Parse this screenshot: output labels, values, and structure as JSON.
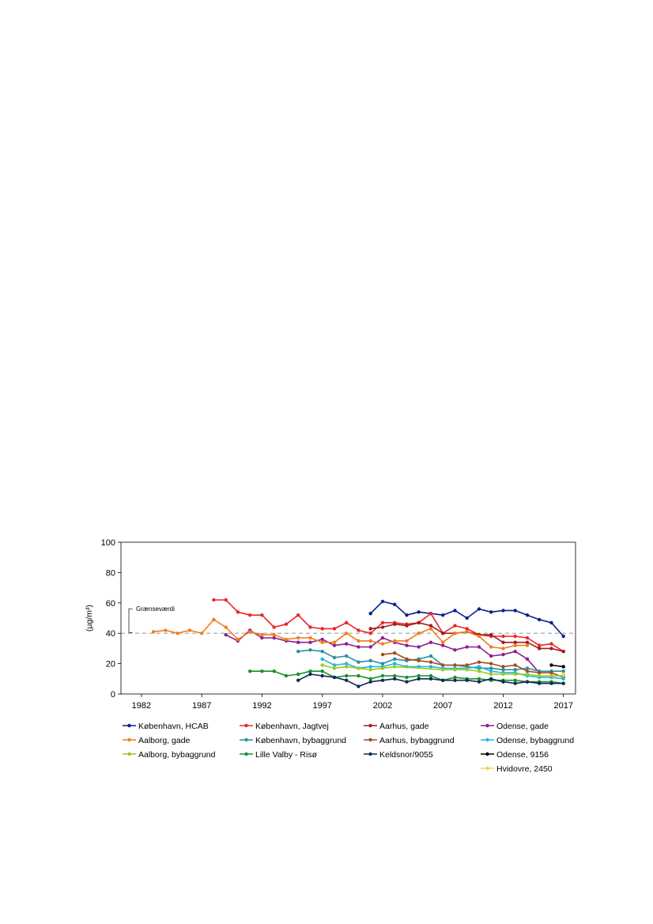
{
  "chart_data": {
    "type": "line",
    "ylabel": "(µg/m³)",
    "ylim": [
      0,
      100
    ],
    "yticks": [
      0,
      20,
      40,
      60,
      80,
      100
    ],
    "xlim": [
      1980.3,
      2018
    ],
    "xticks": [
      1982,
      1987,
      1992,
      1997,
      2002,
      2007,
      2012,
      2017
    ],
    "reference_line": {
      "value": 40,
      "label": "Grænseværdi",
      "style": "dashed",
      "color": "#a0a0a0"
    },
    "legend_position": "bottom",
    "series": [
      {
        "name": "København, HCAB",
        "color": "#0a1f8f",
        "points": [
          [
            2001,
            53
          ],
          [
            2002,
            61
          ],
          [
            2003,
            59
          ],
          [
            2004,
            52
          ],
          [
            2005,
            54
          ],
          [
            2006,
            53
          ],
          [
            2007,
            52
          ],
          [
            2008,
            55
          ],
          [
            2009,
            50
          ],
          [
            2010,
            56
          ],
          [
            2011,
            54
          ],
          [
            2012,
            55
          ],
          [
            2013,
            55
          ],
          [
            2014,
            52
          ],
          [
            2015,
            49
          ],
          [
            2016,
            47
          ],
          [
            2017,
            38
          ]
        ]
      },
      {
        "name": "København, Jagtvej",
        "color": "#e8262a",
        "points": [
          [
            1988,
            62
          ],
          [
            1989,
            62
          ],
          [
            1990,
            54
          ],
          [
            1991,
            52
          ],
          [
            1992,
            52
          ],
          [
            1993,
            44
          ],
          [
            1994,
            46
          ],
          [
            1995,
            52
          ],
          [
            1996,
            44
          ],
          [
            1997,
            43
          ],
          [
            1998,
            43
          ],
          [
            1999,
            47
          ],
          [
            2000,
            42
          ],
          [
            2001,
            40
          ],
          [
            2002,
            47
          ],
          [
            2003,
            47
          ],
          [
            2004,
            46
          ],
          [
            2005,
            47
          ],
          [
            2006,
            53
          ],
          [
            2007,
            40
          ],
          [
            2008,
            45
          ],
          [
            2009,
            43
          ],
          [
            2010,
            39
          ],
          [
            2011,
            38
          ],
          [
            2012,
            38
          ],
          [
            2013,
            38
          ],
          [
            2014,
            37
          ],
          [
            2015,
            32
          ],
          [
            2016,
            33
          ],
          [
            2017,
            28
          ]
        ]
      },
      {
        "name": "Aarhus, gade",
        "color": "#a31c1c",
        "points": [
          [
            2001,
            43
          ],
          [
            2002,
            44
          ],
          [
            2003,
            46
          ],
          [
            2004,
            45
          ],
          [
            2005,
            47
          ],
          [
            2006,
            45
          ],
          [
            2007,
            40
          ],
          [
            2008,
            40
          ],
          [
            2009,
            41
          ],
          [
            2010,
            39
          ],
          [
            2011,
            39
          ],
          [
            2012,
            34
          ],
          [
            2013,
            34
          ],
          [
            2014,
            34
          ],
          [
            2015,
            30
          ],
          [
            2016,
            30
          ],
          [
            2017,
            28
          ]
        ]
      },
      {
        "name": "Odense, gade",
        "color": "#8e1e8e",
        "points": [
          [
            1989,
            39
          ],
          [
            1990,
            35
          ],
          [
            1991,
            42
          ],
          [
            1992,
            37
          ],
          [
            1993,
            37
          ],
          [
            1994,
            35
          ],
          [
            1995,
            34
          ],
          [
            1996,
            34
          ],
          [
            1997,
            36
          ],
          [
            1998,
            32
          ],
          [
            1999,
            33
          ],
          [
            2000,
            31
          ],
          [
            2001,
            31
          ],
          [
            2002,
            37
          ],
          [
            2003,
            34
          ],
          [
            2004,
            32
          ],
          [
            2005,
            31
          ],
          [
            2006,
            34
          ],
          [
            2007,
            32
          ],
          [
            2008,
            29
          ],
          [
            2009,
            31
          ],
          [
            2010,
            31
          ],
          [
            2011,
            25
          ],
          [
            2012,
            26
          ],
          [
            2013,
            28
          ],
          [
            2014,
            23
          ],
          [
            2015,
            14
          ]
        ]
      },
      {
        "name": "Aalborg, gade",
        "color": "#f07d1e",
        "points": [
          [
            1983,
            41
          ],
          [
            1984,
            42
          ],
          [
            1985,
            40
          ],
          [
            1986,
            42
          ],
          [
            1987,
            40
          ],
          [
            1988,
            49
          ],
          [
            1989,
            44
          ],
          [
            1990,
            36
          ],
          [
            1991,
            41
          ],
          [
            1992,
            39
          ],
          [
            1993,
            39
          ],
          [
            1994,
            36
          ],
          [
            1995,
            37
          ],
          [
            1996,
            37
          ],
          [
            1997,
            34
          ],
          [
            1998,
            34
          ],
          [
            1999,
            40
          ],
          [
            2000,
            35
          ],
          [
            2001,
            35
          ],
          [
            2002,
            33
          ],
          [
            2003,
            35
          ],
          [
            2004,
            35
          ],
          [
            2005,
            40
          ],
          [
            2006,
            43
          ],
          [
            2007,
            34
          ],
          [
            2008,
            40
          ],
          [
            2009,
            41
          ],
          [
            2010,
            38
          ],
          [
            2011,
            31
          ],
          [
            2012,
            30
          ],
          [
            2013,
            32
          ],
          [
            2014,
            32
          ]
        ]
      },
      {
        "name": "København, bybaggrund",
        "color": "#2a8f9e",
        "points": [
          [
            1995,
            28
          ],
          [
            1996,
            29
          ],
          [
            1997,
            28
          ],
          [
            1998,
            24
          ],
          [
            1999,
            25
          ],
          [
            2000,
            21
          ],
          [
            2001,
            22
          ],
          [
            2002,
            20
          ],
          [
            2003,
            23
          ],
          [
            2004,
            22
          ],
          [
            2005,
            23
          ],
          [
            2006,
            25
          ],
          [
            2007,
            19
          ],
          [
            2008,
            19
          ],
          [
            2009,
            18
          ],
          [
            2010,
            17
          ],
          [
            2011,
            17
          ],
          [
            2012,
            16
          ],
          [
            2013,
            16
          ],
          [
            2014,
            17
          ],
          [
            2015,
            15
          ],
          [
            2016,
            15
          ],
          [
            2017,
            15
          ]
        ]
      },
      {
        "name": "Aarhus, bybaggrund",
        "color": "#a64a1c",
        "points": [
          [
            2002,
            26
          ],
          [
            2003,
            27
          ],
          [
            2004,
            23
          ],
          [
            2005,
            22
          ],
          [
            2006,
            21
          ],
          [
            2007,
            19
          ],
          [
            2008,
            19
          ],
          [
            2009,
            19
          ],
          [
            2010,
            21
          ],
          [
            2011,
            20
          ],
          [
            2012,
            18
          ],
          [
            2013,
            19
          ],
          [
            2014,
            15
          ],
          [
            2015,
            14
          ],
          [
            2016,
            14
          ],
          [
            2017,
            11
          ]
        ]
      },
      {
        "name": "Odense, bybaggrund",
        "color": "#21b6e6",
        "points": [
          [
            1997,
            23
          ],
          [
            1998,
            19
          ],
          [
            1999,
            20
          ],
          [
            2000,
            17
          ],
          [
            2001,
            18
          ],
          [
            2002,
            18
          ],
          [
            2003,
            20
          ],
          [
            2004,
            18
          ],
          [
            2005,
            18
          ],
          [
            2006,
            18
          ],
          [
            2007,
            17
          ],
          [
            2008,
            17
          ],
          [
            2009,
            17
          ],
          [
            2010,
            18
          ],
          [
            2011,
            15
          ],
          [
            2012,
            14
          ],
          [
            2013,
            14
          ],
          [
            2014,
            12
          ],
          [
            2015,
            11
          ],
          [
            2016,
            11
          ],
          [
            2017,
            10
          ]
        ]
      },
      {
        "name": "Aalborg, bybaggrund",
        "color": "#9ccc1c",
        "points": [
          [
            1997,
            19
          ],
          [
            1998,
            17
          ],
          [
            1999,
            18
          ],
          [
            2000,
            17
          ],
          [
            2001,
            16
          ],
          [
            2002,
            17
          ],
          [
            2003,
            18
          ],
          [
            2007,
            16
          ],
          [
            2008,
            16
          ],
          [
            2009,
            16
          ],
          [
            2010,
            15
          ],
          [
            2011,
            13
          ],
          [
            2012,
            13
          ],
          [
            2013,
            13
          ],
          [
            2014,
            13
          ],
          [
            2015,
            12
          ],
          [
            2016,
            12
          ],
          [
            2017,
            12
          ]
        ]
      },
      {
        "name": "Lille Valby - Risø",
        "color": "#16912a",
        "points": [
          [
            1991,
            15
          ],
          [
            1992,
            15
          ],
          [
            1993,
            15
          ],
          [
            1994,
            12
          ],
          [
            1995,
            13
          ],
          [
            1996,
            15
          ],
          [
            1997,
            15
          ],
          [
            1998,
            11
          ],
          [
            1999,
            12
          ],
          [
            2000,
            12
          ],
          [
            2001,
            10
          ],
          [
            2002,
            12
          ],
          [
            2003,
            12
          ],
          [
            2004,
            11
          ],
          [
            2005,
            12
          ],
          [
            2006,
            12
          ],
          [
            2007,
            9
          ],
          [
            2008,
            11
          ],
          [
            2009,
            10
          ],
          [
            2010,
            10
          ],
          [
            2011,
            9
          ],
          [
            2012,
            9
          ],
          [
            2013,
            9
          ],
          [
            2014,
            8
          ],
          [
            2015,
            8
          ],
          [
            2016,
            8
          ],
          [
            2017,
            7
          ]
        ]
      },
      {
        "name": "Keldsnor/9055",
        "color": "#0f2a52",
        "points": [
          [
            1995,
            9
          ],
          [
            1996,
            13
          ],
          [
            1997,
            12
          ],
          [
            1998,
            11
          ],
          [
            1999,
            9
          ],
          [
            2000,
            5
          ],
          [
            2001,
            8
          ],
          [
            2002,
            9
          ],
          [
            2003,
            10
          ],
          [
            2004,
            8
          ],
          [
            2005,
            10
          ],
          [
            2006,
            10
          ],
          [
            2007,
            9
          ],
          [
            2008,
            9
          ],
          [
            2009,
            9
          ],
          [
            2010,
            8
          ],
          [
            2011,
            10
          ],
          [
            2012,
            8
          ],
          [
            2013,
            7
          ],
          [
            2014,
            8
          ],
          [
            2015,
            7
          ],
          [
            2016,
            7
          ],
          [
            2017,
            7
          ]
        ]
      },
      {
        "name": "Odense, 9156",
        "color": "#000000",
        "points": [
          [
            2016,
            19
          ],
          [
            2017,
            18
          ]
        ]
      },
      {
        "name": "Hvidovre, 2450",
        "color": "#f2d25c",
        "points": [
          [
            2017,
            13
          ]
        ]
      }
    ]
  }
}
